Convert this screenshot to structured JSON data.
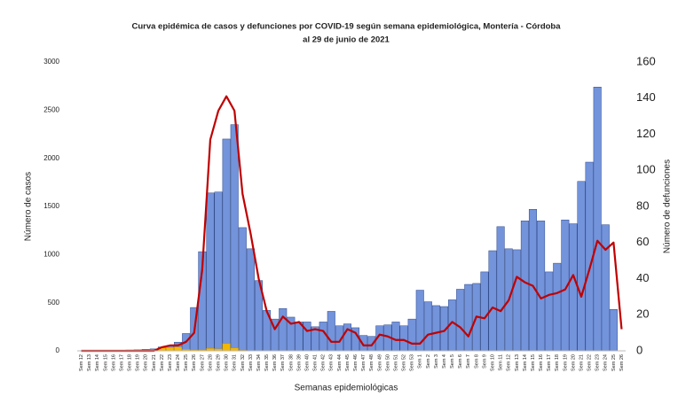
{
  "chart_data": {
    "type": "bar",
    "title": "Curva epidémica de casos y defunciones por COVID-19 según semana epidemiológica, Montería - Córdoba",
    "subtitle": "al 29 de junio de 2021",
    "x_label": "Semanas epidemiológicas",
    "y_label": "Número de casos",
    "y2_label": "Número de defunciones",
    "categories": [
      "Sem 12",
      "Sem 13",
      "Sem 14",
      "Sem 15",
      "Sem 16",
      "Sem 17",
      "Sem 18",
      "Sem 19",
      "Sem 20",
      "Sem 21",
      "Sem 22",
      "Sem 23",
      "Sem 24",
      "Sem 25",
      "Sem 26",
      "Sem 27",
      "Sem 28",
      "Sem 29",
      "Sem 30",
      "Sem 31",
      "Sem 32",
      "Sem 33",
      "Sem 34",
      "Sem 35",
      "Sem 36",
      "Sem 37",
      "Sem 38",
      "Sem 39",
      "Sem 40",
      "Sem 41",
      "Sem 42",
      "Sem 43",
      "Sem 44",
      "Sem 45",
      "Sem 46",
      "Sem 47",
      "Sem 48",
      "Sem 49",
      "Sem 50",
      "Sem 51",
      "Sem 52",
      "Sem 53",
      "Sem 1",
      "Sem 2",
      "Sem 3",
      "Sem 4",
      "Sem 5",
      "Sem 6",
      "Sem 7",
      "Sem 8",
      "Sem 9",
      "Sem 10",
      "Sem 11",
      "Sem 12",
      "Sem 13",
      "Sem 14",
      "Sem 15",
      "Sem 16",
      "Sem 17",
      "Sem 18",
      "Sem 19",
      "Sem 20",
      "Sem 21",
      "Sem 22",
      "Sem 23",
      "Sem 24",
      "Sem 25",
      "Sem 26"
    ],
    "series": [
      {
        "type": "bar",
        "color": "#7393db",
        "edge": "#2f4a8a",
        "values": [
          2,
          3,
          3,
          5,
          5,
          5,
          8,
          10,
          15,
          20,
          40,
          50,
          90,
          180,
          450,
          1030,
          1640,
          1650,
          2200,
          2350,
          1280,
          1060,
          730,
          420,
          330,
          440,
          350,
          300,
          300,
          250,
          300,
          410,
          260,
          280,
          240,
          160,
          150,
          260,
          270,
          300,
          260,
          330,
          630,
          510,
          470,
          460,
          530,
          640,
          690,
          700,
          820,
          1040,
          1290,
          1060,
          1050,
          1350,
          1470,
          1350,
          820,
          910,
          1360,
          1320,
          1760,
          1960,
          2740,
          1310,
          430,
          null
        ]
      },
      {
        "type": "bar",
        "color": "#f5b800",
        "edge": "#c89400",
        "values": [
          0,
          0,
          0,
          0,
          0,
          0,
          0,
          0,
          5,
          10,
          30,
          35,
          40,
          15,
          10,
          10,
          25,
          20,
          75,
          30,
          5,
          0,
          0,
          0,
          0,
          0,
          0,
          0,
          0,
          0,
          0,
          0,
          0,
          0,
          0,
          0,
          0,
          0,
          0,
          0,
          0,
          0,
          0,
          0,
          0,
          0,
          0,
          0,
          0,
          0,
          0,
          0,
          0,
          0,
          0,
          0,
          0,
          0,
          0,
          0,
          0,
          0,
          0,
          0,
          0,
          0,
          0,
          0
        ]
      },
      {
        "type": "line",
        "axis": "y2",
        "color": "#c00000",
        "values": [
          0,
          0,
          0,
          0,
          0,
          0,
          0,
          0,
          0,
          0,
          2,
          3,
          3,
          5,
          10,
          45,
          117,
          133,
          141,
          133,
          87,
          65,
          40,
          22,
          12,
          19,
          15,
          16,
          11,
          12,
          11,
          5,
          5,
          12,
          10,
          3,
          3,
          9,
          8,
          6,
          6,
          4,
          4,
          9,
          10,
          11,
          16,
          13,
          8,
          19,
          18,
          24,
          22,
          28,
          41,
          38,
          36,
          29,
          31,
          32,
          34,
          42,
          30,
          45,
          61,
          56,
          60,
          12
        ]
      }
    ],
    "ylim": [
      0,
      3000
    ],
    "yticks": [
      0,
      500,
      1000,
      1500,
      2000,
      2500,
      3000
    ],
    "y2lim": [
      0,
      160
    ],
    "y2ticks": [
      0,
      20,
      40,
      60,
      80,
      100,
      120,
      140,
      160
    ],
    "grid": false
  }
}
